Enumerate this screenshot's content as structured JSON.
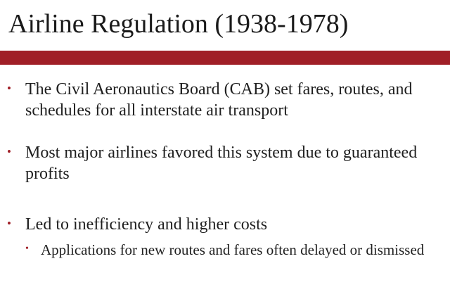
{
  "slide": {
    "title": "Airline Regulation (1938-1978)",
    "bullets": [
      {
        "marker": "•",
        "text": "The Civil Aeronautics Board (CAB) set fares, routes, and schedules for all interstate air transport"
      },
      {
        "marker": "•",
        "text": "Most major airlines favored this system due to guaranteed profits"
      },
      {
        "marker": "•",
        "text": "Led to inefficiency and higher costs"
      },
      {
        "marker": "•",
        "text": "Applications for new routes and fares often delayed or dismissed"
      }
    ]
  },
  "colors": {
    "accent_bar": "#a01f27",
    "text": "#1f1f1f",
    "background": "#ffffff"
  }
}
